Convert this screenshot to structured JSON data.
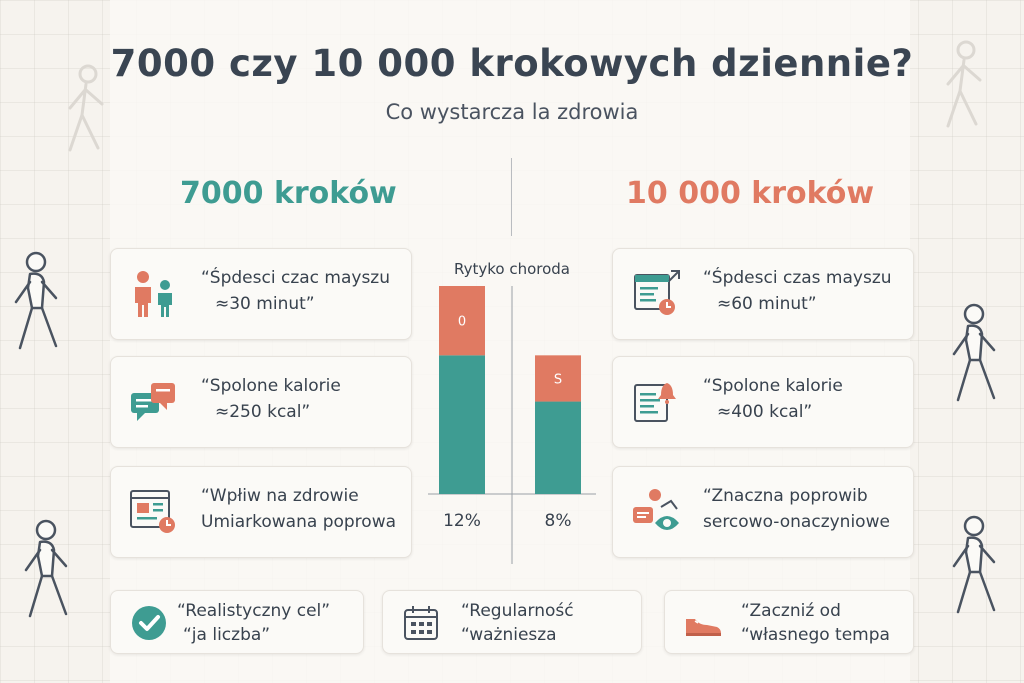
{
  "title": "7000 czy 10 000 krokowych dziennie?",
  "subtitle": "Co wystarcza la zdrowia",
  "left": {
    "heading": "7000 kroków",
    "cards": [
      {
        "line1": "“Śpdesci czac mayszu",
        "line2": "≈30 minut”",
        "icon": "family-icon"
      },
      {
        "line1": "“Spolone kalorie",
        "line2": "≈250 kcal”",
        "icon": "chat-bubbles-icon"
      },
      {
        "line1": "“Wpłiw na zdrowie",
        "line2": "Umiarkowana poprowa",
        "icon": "browser-clock-icon"
      }
    ]
  },
  "right": {
    "heading": "10 000 kroków",
    "cards": [
      {
        "line1": "“Śpdesci czas mayszu",
        "line2": "≈60 minut”",
        "icon": "calendar-clock-icon"
      },
      {
        "line1": "“Spolone kalorie",
        "line2": "≈400 kcal”",
        "icon": "document-bell-icon"
      },
      {
        "line1": "“Znaczna poprowib",
        "line2": "sercowo-onaczyniowe",
        "icon": "person-eye-icon"
      }
    ]
  },
  "chart_data": {
    "type": "bar",
    "title": "Rytyko choroda",
    "categories": [
      "12%",
      "8%"
    ],
    "series": [
      {
        "values": [
          12,
          8
        ],
        "labels": [
          "",
          ""
        ]
      },
      {
        "values": [
          6,
          4
        ],
        "labels": [
          "0",
          "S"
        ]
      }
    ],
    "ylim": [
      0,
      18
    ],
    "colors": [
      "#3e9c92",
      "#e07a62"
    ]
  },
  "bottom": [
    {
      "line1": "“Realistyczny cel”",
      "line2": "“ja liczba”",
      "icon": "checkmark-icon"
    },
    {
      "line1": "“Regularność",
      "line2": "“ważniesza",
      "icon": "calendar-icon"
    },
    {
      "line1": "“Zaczniź od",
      "line2": "“własnego tempa",
      "icon": "shoe-icon"
    }
  ],
  "colors": {
    "teal": "#3e9c92",
    "coral": "#e07a62",
    "text": "#38424e"
  }
}
